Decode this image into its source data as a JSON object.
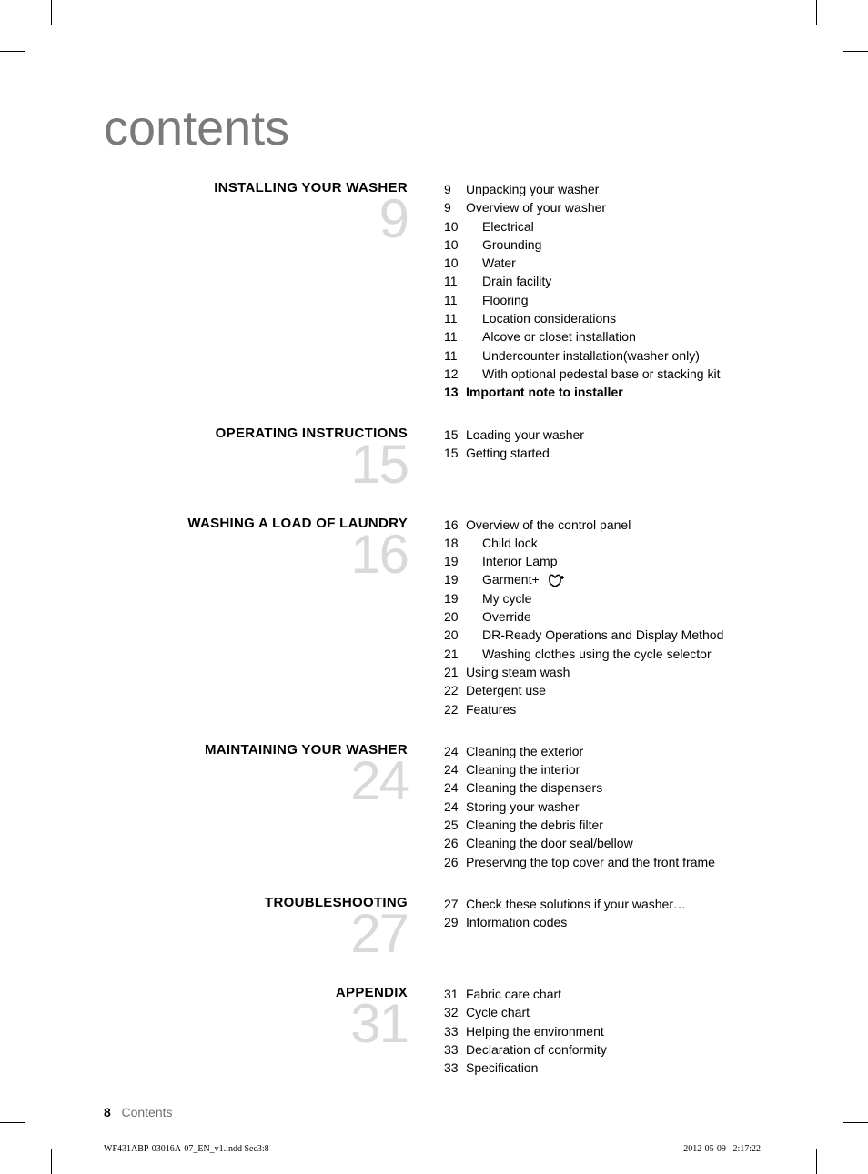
{
  "page": {
    "title": "contents",
    "title_color": "#7a7a7a",
    "title_fontsize": 54,
    "rule_color": "#7a7a7a",
    "bignum_color": "#d9d9d9",
    "text_color": "#000000",
    "background_color": "#ffffff"
  },
  "sections": [
    {
      "heading": "INSTALLING YOUR WASHER",
      "number": "9",
      "entries": [
        {
          "page": "9",
          "text": "Unpacking your washer",
          "sub": false,
          "bold": false
        },
        {
          "page": "9",
          "text": "Overview of your washer",
          "sub": false,
          "bold": false
        },
        {
          "page": "10",
          "text": "Electrical",
          "sub": true,
          "bold": false
        },
        {
          "page": "10",
          "text": "Grounding",
          "sub": true,
          "bold": false
        },
        {
          "page": "10",
          "text": "Water",
          "sub": true,
          "bold": false
        },
        {
          "page": "11",
          "text": "Drain facility",
          "sub": true,
          "bold": false
        },
        {
          "page": "11",
          "text": "Flooring",
          "sub": true,
          "bold": false
        },
        {
          "page": "11",
          "text": "Location considerations",
          "sub": true,
          "bold": false
        },
        {
          "page": "11",
          "text": "Alcove or closet installation",
          "sub": true,
          "bold": false
        },
        {
          "page": "11",
          "text": "Undercounter installation(washer only)",
          "sub": true,
          "bold": false
        },
        {
          "page": "12",
          "text": "With optional pedestal base or stacking kit",
          "sub": true,
          "bold": false
        },
        {
          "page": "13",
          "text": "Important note to installer",
          "sub": false,
          "bold": true
        }
      ]
    },
    {
      "heading": "OPERATING INSTRUCTIONS",
      "number": "15",
      "entries": [
        {
          "page": "15",
          "text": "Loading your washer",
          "sub": false,
          "bold": false
        },
        {
          "page": "15",
          "text": "Getting started",
          "sub": false,
          "bold": false
        }
      ]
    },
    {
      "heading": "WASHING A LOAD OF LAUNDRY",
      "number": "16",
      "entries": [
        {
          "page": "16",
          "text": "Overview of the control panel",
          "sub": false,
          "bold": false
        },
        {
          "page": "18",
          "text": "Child lock",
          "sub": true,
          "bold": false
        },
        {
          "page": "19",
          "text": "Interior Lamp",
          "sub": true,
          "bold": false
        },
        {
          "page": "19",
          "text": "Garment+",
          "sub": true,
          "bold": false,
          "icon": "garment-plus-icon"
        },
        {
          "page": "19",
          "text": "My cycle",
          "sub": true,
          "bold": false
        },
        {
          "page": "20",
          "text": "Override",
          "sub": true,
          "bold": false
        },
        {
          "page": "20",
          "text": "DR-Ready Operations and Display Method",
          "sub": true,
          "bold": false
        },
        {
          "page": "21",
          "text": "Washing clothes using the cycle selector",
          "sub": true,
          "bold": false
        },
        {
          "page": "21",
          "text": "Using steam wash",
          "sub": false,
          "bold": false
        },
        {
          "page": "22",
          "text": "Detergent use",
          "sub": false,
          "bold": false
        },
        {
          "page": "22",
          "text": "Features",
          "sub": false,
          "bold": false
        }
      ]
    },
    {
      "heading": "MAINTAINING YOUR WASHER",
      "number": "24",
      "entries": [
        {
          "page": "24",
          "text": "Cleaning the exterior",
          "sub": false,
          "bold": false
        },
        {
          "page": "24",
          "text": "Cleaning the interior",
          "sub": false,
          "bold": false
        },
        {
          "page": "24",
          "text": "Cleaning the dispensers",
          "sub": false,
          "bold": false
        },
        {
          "page": "24",
          "text": "Storing your washer",
          "sub": false,
          "bold": false
        },
        {
          "page": "25",
          "text": "Cleaning the debris filter",
          "sub": false,
          "bold": false
        },
        {
          "page": "26",
          "text": "Cleaning the door seal/bellow",
          "sub": false,
          "bold": false
        },
        {
          "page": "26",
          "text": "Preserving the top cover and the front frame",
          "sub": false,
          "bold": false
        }
      ]
    },
    {
      "heading": "TROUBLESHOOTING",
      "number": "27",
      "entries": [
        {
          "page": "27",
          "text": "Check these solutions if your washer…",
          "sub": false,
          "bold": false
        },
        {
          "page": "29",
          "text": "Information codes",
          "sub": false,
          "bold": false
        }
      ]
    },
    {
      "heading": "APPENDIX",
      "number": "31",
      "entries": [
        {
          "page": "31",
          "text": "Fabric care chart",
          "sub": false,
          "bold": false
        },
        {
          "page": "32",
          "text": "Cycle chart",
          "sub": false,
          "bold": false
        },
        {
          "page": "33",
          "text": "Helping the environment",
          "sub": false,
          "bold": false
        },
        {
          "page": "33",
          "text": "Declaration of conformity",
          "sub": false,
          "bold": false
        },
        {
          "page": "33",
          "text": "Specification",
          "sub": false,
          "bold": false
        }
      ]
    }
  ],
  "footer": {
    "page_number": "8",
    "page_label": "_ Contents",
    "slug_left": "WF431ABP-03016A-07_EN_v1.indd   Sec3:8",
    "slug_date": "2012-05-09",
    "slug_time": "2:17:22"
  }
}
